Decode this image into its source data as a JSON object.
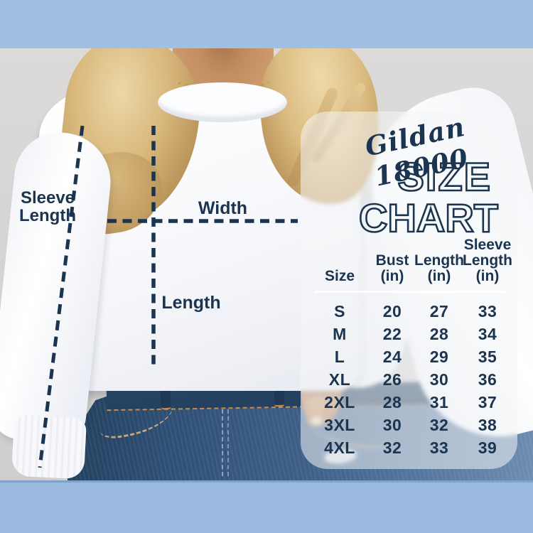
{
  "brand": {
    "script_title": "Gildan 18000",
    "title_line1": "SIZE",
    "title_line2": "CHART"
  },
  "annotations": {
    "sleeve_length_label": "Sleeve Length",
    "width_label": "Width",
    "length_label": "Length"
  },
  "colors": {
    "accent_navy": "#1b3450",
    "frame_bar_blue_top": "#9fbfe3",
    "frame_bar_blue_bottom": "#9bbadf",
    "backdrop_gray": "#d7d6d4",
    "sweatshirt_white": "#f8f9fc",
    "denim_blue": "#3e5f88",
    "stitch_orange": "#c98b4e",
    "necklace_gold": "#c29b5a",
    "panel_frost": "rgba(244,245,247,0.55)"
  },
  "chart_data": {
    "type": "table",
    "title": "Gildan 18000 Size Chart",
    "columns": [
      [
        "Size"
      ],
      [
        "Bust",
        "(in)"
      ],
      [
        "Length",
        "(in)"
      ],
      [
        "Sleeve",
        "Length",
        "(in)"
      ]
    ],
    "rows": [
      [
        "S",
        "20",
        "27",
        "33"
      ],
      [
        "M",
        "22",
        "28",
        "34"
      ],
      [
        "L",
        "24",
        "29",
        "35"
      ],
      [
        "XL",
        "26",
        "30",
        "36"
      ],
      [
        "2XL",
        "28",
        "31",
        "37"
      ],
      [
        "3XL",
        "30",
        "32",
        "38"
      ],
      [
        "4XL",
        "32",
        "33",
        "39"
      ]
    ]
  }
}
